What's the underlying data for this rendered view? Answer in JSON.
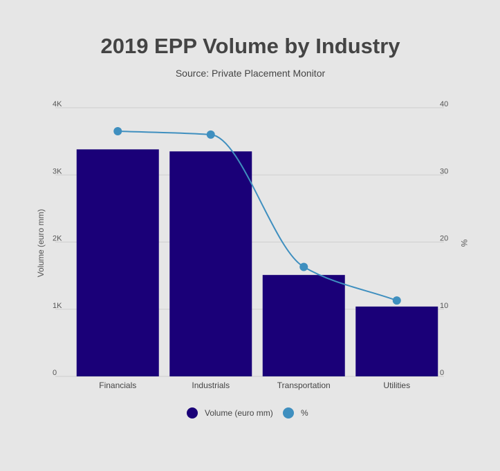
{
  "chart_data": {
    "type": "bar",
    "title": "2019 EPP Volume by Industry",
    "subtitle": "Source: Private Placement Monitor",
    "categories": [
      "Financials",
      "Industrials",
      "Transportation",
      "Utilities"
    ],
    "series": [
      {
        "name": "Volume (euro mm)",
        "type": "bar",
        "axis": "left",
        "color": "#1a0078",
        "values": [
          3380,
          3350,
          1510,
          1040
        ]
      },
      {
        "name": "%",
        "type": "line",
        "axis": "right",
        "color": "#3f8fbf",
        "smooth": true,
        "values": [
          36.5,
          36.0,
          16.3,
          11.3
        ]
      }
    ],
    "ylabel": "Volume (euro mm)",
    "y2label": "%",
    "ylim": [
      0,
      4000
    ],
    "y2lim": [
      0,
      40
    ],
    "yticks": [
      "0",
      "1K",
      "2K",
      "3K",
      "4K"
    ],
    "y2ticks": [
      "0",
      "10",
      "20",
      "30",
      "40"
    ],
    "grid": true,
    "legend_position": "bottom"
  }
}
